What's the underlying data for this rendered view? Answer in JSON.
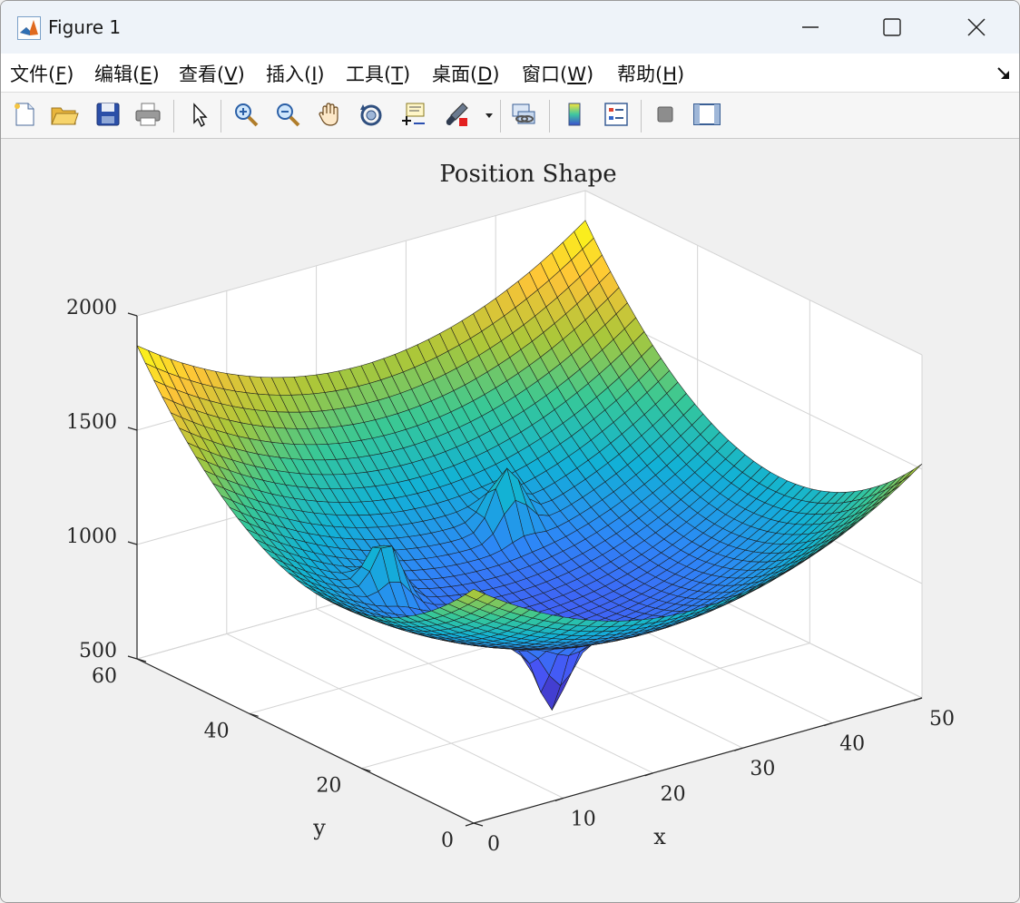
{
  "window": {
    "title": "Figure 1",
    "controls": {
      "minimize": "minimize",
      "maximize": "maximize",
      "close": "close"
    }
  },
  "menu": [
    {
      "label": "文件(",
      "key": "F",
      "tail": ")"
    },
    {
      "label": "编辑(",
      "key": "E",
      "tail": ")"
    },
    {
      "label": "查看(",
      "key": "V",
      "tail": ")"
    },
    {
      "label": "插入(",
      "key": "I",
      "tail": ")"
    },
    {
      "label": "工具(",
      "key": "T",
      "tail": ")"
    },
    {
      "label": "桌面(",
      "key": "D",
      "tail": ")"
    },
    {
      "label": "窗口(",
      "key": "W",
      "tail": ")"
    },
    {
      "label": "帮助(",
      "key": "H",
      "tail": ")"
    }
  ],
  "toolbar": {
    "tools": [
      "new-figure-icon",
      "open-file-icon",
      "save-icon",
      "print-icon",
      "select-arrow-icon",
      "zoom-in-icon",
      "zoom-out-icon",
      "pan-hand-icon",
      "rotate-3d-icon",
      "data-cursor-icon",
      "brush-icon",
      "link-plot-icon",
      "colorbar-icon",
      "legend-icon",
      "hide-plot-tools-icon",
      "show-plot-tools-icon"
    ]
  },
  "chart_data": {
    "type": "surface",
    "title": "Position Shape",
    "xlabel": "x",
    "ylabel": "y",
    "zlabel": "",
    "xlim": [
      0,
      50
    ],
    "ylim": [
      0,
      60
    ],
    "zlim": [
      500,
      2000
    ],
    "xticks": [
      "0",
      "10",
      "20",
      "30",
      "40",
      "50"
    ],
    "yticks": [
      "0",
      "20",
      "40",
      "60"
    ],
    "zticks": [
      "500",
      "1000",
      "1500",
      "2000"
    ],
    "colormap": "parula",
    "grid": true,
    "grid_size": [
      40,
      40
    ],
    "surface": {
      "shape": "paraboloid bowl",
      "center": [
        25,
        25
      ],
      "min_z": 800,
      "corner_z_max": 1870,
      "features": [
        {
          "kind": "peak",
          "x": 12,
          "y": 35,
          "z": 1200
        },
        {
          "kind": "peak",
          "x": 30,
          "y": 42,
          "z": 1220
        },
        {
          "kind": "peak",
          "x": 18,
          "y": 26,
          "z": 1000
        },
        {
          "kind": "dip",
          "x": 20,
          "y": 18,
          "z": 560
        }
      ]
    }
  }
}
